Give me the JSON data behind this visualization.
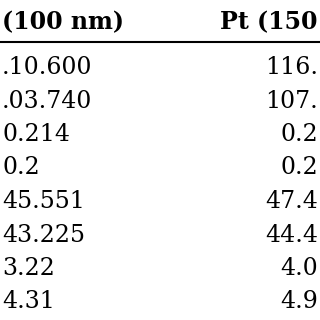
{
  "col1_header": "(100 nm)",
  "col2_header": "Pt (150",
  "col1_values": [
    ".10.600",
    ".03.740",
    "0.214",
    "0.2",
    "45.551",
    "43.225",
    "3.22",
    "4.31"
  ],
  "col2_values": [
    "116.",
    "107.",
    "0.2",
    "0.2",
    "47.4",
    "44.4",
    "4.0",
    "4.9"
  ],
  "font_size": 17,
  "header_font_size": 17,
  "bg_color": "#ffffff",
  "text_color": "#000000",
  "line_color": "#000000"
}
